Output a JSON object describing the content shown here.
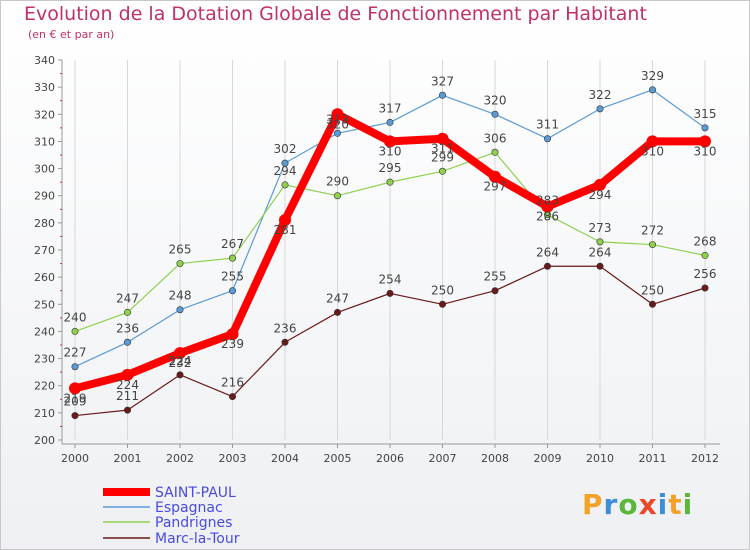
{
  "title": "Evolution de la Dotation Globale de Fonctionnement par Habitant",
  "subtitle": "(en € et par an)",
  "logo": "Proxiti",
  "colors": {
    "saint_paul": "#ff0000",
    "espagnac": "#5b9bd5",
    "pandrignes": "#8fd14f",
    "marc_la_tour": "#6b1a1a",
    "title": "#c0306a",
    "legend_text": "#4a4ae0"
  },
  "chart_data": {
    "type": "line",
    "title": "Evolution de la Dotation Globale de Fonctionnement par Habitant",
    "subtitle": "(en € et par an)",
    "xlabel": "",
    "ylabel": "",
    "x": [
      "2000",
      "2001",
      "2002",
      "2003",
      "2004",
      "2005",
      "2006",
      "2007",
      "2008",
      "2009",
      "2010",
      "2011",
      "2012"
    ],
    "ylim": [
      200,
      340
    ],
    "yticks": [
      "200",
      "210",
      "220",
      "230",
      "240",
      "250",
      "260",
      "270",
      "280",
      "290",
      "300",
      "310",
      "320",
      "330",
      "340"
    ],
    "grid": "vertical",
    "legend_position": "bottom-left",
    "series": [
      {
        "name": "SAINT-PAUL",
        "values": [
          219,
          224,
          232,
          239,
          281,
          320,
          310,
          311,
          297,
          286,
          294,
          310,
          310
        ],
        "labels": [
          "219",
          "224",
          "232",
          "239",
          "281",
          "320",
          "310",
          "311",
          "297",
          "286",
          "294",
          "310",
          "310"
        ]
      },
      {
        "name": "Espagnac",
        "values": [
          227,
          236,
          248,
          255,
          302,
          313,
          317,
          327,
          320,
          311,
          322,
          329,
          315
        ],
        "labels": [
          "227",
          "236",
          "248",
          "255",
          "302",
          "313",
          "317",
          "327",
          "320",
          "311",
          "322",
          "329",
          "315"
        ]
      },
      {
        "name": "Pandrignes",
        "values": [
          240,
          247,
          265,
          267,
          294,
          290,
          295,
          299,
          306,
          283,
          273,
          272,
          268
        ],
        "labels": [
          "240",
          "247",
          "265",
          "267",
          "294",
          "290",
          "295",
          "299",
          "306",
          "283",
          "273",
          "272",
          "268"
        ]
      },
      {
        "name": "Marc-la-Tour",
        "values": [
          209,
          211,
          224,
          216,
          236,
          247,
          254,
          250,
          255,
          264,
          264,
          250,
          256
        ],
        "labels": [
          "209",
          "211",
          "224",
          "216",
          "236",
          "247",
          "254",
          "250",
          "255",
          "264",
          "264",
          "250",
          "256"
        ]
      }
    ]
  }
}
